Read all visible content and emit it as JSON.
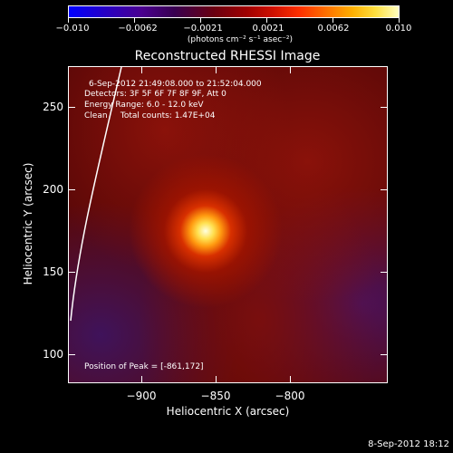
{
  "colorbar": {
    "ticks": [
      "−0.010",
      "−0.0062",
      "−0.0021",
      "0.0021",
      "0.0062",
      "0.010"
    ],
    "units": "(photons cm⁻² s⁻¹ asec⁻²)"
  },
  "title": "Reconstructed RHESSI Image",
  "info": {
    "time": "6-Sep-2012 21:49:08.000 to 21:52:04.000",
    "detectors": "Detectors: 3F 5F 6F 7F 8F 9F, Att 0",
    "energy": "Energy Range: 6.0 - 12.0 keV",
    "clean": "Clean     Total counts: 1.47E+04",
    "peak": "Position of Peak = [-861,172]"
  },
  "axes": {
    "xlabel": "Heliocentric X (arcsec)",
    "ylabel": "Heliocentric Y (arcsec)",
    "xticks": [
      "−900",
      "−850",
      "−800"
    ],
    "yticks": [
      "250",
      "200",
      "150",
      "100"
    ]
  },
  "footer_date": "8-Sep-2012 18:12"
}
